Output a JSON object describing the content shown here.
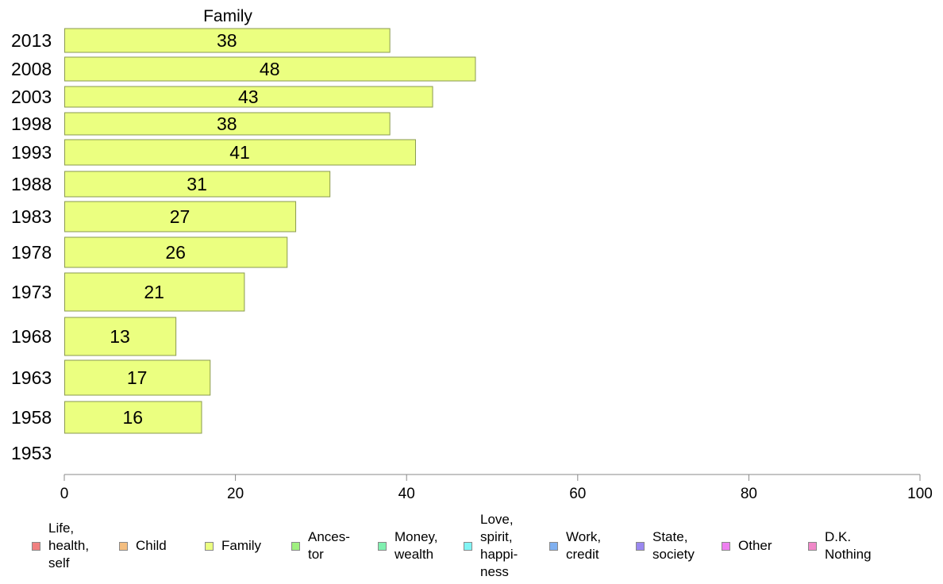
{
  "chart_data": {
    "type": "bar",
    "orientation": "horizontal",
    "title": "Family",
    "categories": [
      "2013",
      "2008",
      "2003",
      "1998",
      "1993",
      "1988",
      "1983",
      "1978",
      "1973",
      "1968",
      "1963",
      "1958",
      "1953"
    ],
    "series": [
      {
        "name": "Family",
        "values": [
          38,
          48,
          43,
          38,
          41,
          31,
          27,
          26,
          21,
          13,
          17,
          16,
          null
        ]
      }
    ],
    "data_labels": [
      "38",
      "48",
      "43",
      "38",
      "41",
      "31",
      "27",
      "26",
      "21",
      "13",
      "17",
      "16",
      ""
    ],
    "xlim": [
      0,
      100
    ],
    "xticks": [
      0,
      20,
      40,
      60,
      80,
      100
    ],
    "grid": false,
    "bar_color": "#ebff80",
    "bar_stroke": "#8a9a50",
    "legend_position": "bottom",
    "legend": [
      {
        "label": "Life,\nhealth,\nself",
        "color": "#f08080"
      },
      {
        "label": "Child",
        "color": "#f4be80"
      },
      {
        "label": "Family",
        "color": "#ebff80"
      },
      {
        "label": "Ances-\ntor",
        "color": "#a0f080"
      },
      {
        "label": "Money,\nwealth",
        "color": "#80f0b0"
      },
      {
        "label": "Love,\nspirit,\nhappi-\nness",
        "color": "#80f4f4"
      },
      {
        "label": "Work,\ncredit",
        "color": "#80b0f0"
      },
      {
        "label": "State,\nsociety",
        "color": "#9a88f0"
      },
      {
        "label": "Other",
        "color": "#ee80f0"
      },
      {
        "label": "D.K.\nNothing",
        "color": "#f088c8"
      }
    ]
  }
}
